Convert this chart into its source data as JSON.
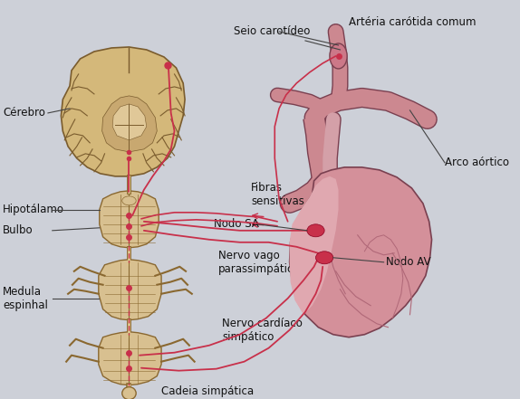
{
  "background_color": "#cdd0d8",
  "labels": {
    "cerebro": "Cérebro",
    "hipotalamo": "Hipotálamo",
    "bulbo": "Bulbo",
    "medula": "Medula\nespinhal",
    "seio_carotideo": "Seio carotídeo",
    "arteria": "Artéria carótida comum",
    "fibras": "Fibras\nsensitivas",
    "arco_aortico": "Arco aórtico",
    "nodo_sa": "Nodo SA",
    "nodo_av": "Nodo AV",
    "nervo_vago": "Nervo vago\nparassimpático",
    "nervo_cardiaco": "Nervo cardíaco\nsimpático",
    "cadeia": "Cadeia simpática"
  },
  "brain_color": "#d4b87a",
  "brain_outline": "#7a5c2e",
  "brain_inner": "#c8a458",
  "heart_fill": "#d4909a",
  "heart_dark": "#b06878",
  "heart_outline": "#7a4050",
  "vessel_fill": "#cc8890",
  "spinal_color": "#d8c090",
  "spinal_outline": "#8a6830",
  "nerve_color": "#c8304a",
  "text_color": "#111111",
  "line_color": "#444444",
  "font_size": 8.5
}
